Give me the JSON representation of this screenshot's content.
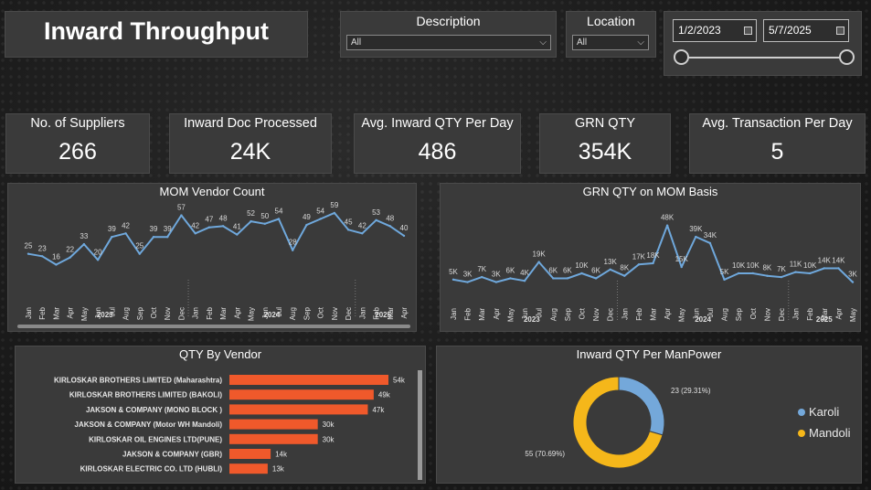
{
  "header": {
    "title": "Inward Throughput"
  },
  "filters": {
    "description": {
      "label": "Description",
      "value": "All"
    },
    "location": {
      "label": "Location",
      "value": "All"
    },
    "date_range": {
      "start": "1/2/2023",
      "end": "5/7/2025"
    }
  },
  "kpis": [
    {
      "label": "No. of Suppliers",
      "value": "266"
    },
    {
      "label": "Inward Doc Processed",
      "value": "24K"
    },
    {
      "label": "Avg. Inward QTY Per Day",
      "value": "486"
    },
    {
      "label": "GRN QTY",
      "value": "354K"
    },
    {
      "label": "Avg. Transaction Per Day",
      "value": "5"
    }
  ],
  "colors": {
    "line": "#6fa8dc",
    "bar": "#f0592b",
    "karoli": "#74a8da",
    "mandoli": "#f5b71a"
  },
  "chart_data": [
    {
      "type": "line",
      "title": "MOM Vendor Count",
      "x": [
        "Jan",
        "Feb",
        "Mar",
        "Apr",
        "May",
        "Jun",
        "Jul",
        "Aug",
        "Sep",
        "Oct",
        "Nov",
        "Dec",
        "Jan",
        "Feb",
        "Mar",
        "Apr",
        "May",
        "Jun",
        "Jul",
        "Aug",
        "Sep",
        "Oct",
        "Nov",
        "Dec",
        "Jan",
        "Feb",
        "Mar",
        "Apr"
      ],
      "year_labels": [
        {
          "label": "2023",
          "start": 0,
          "end": 11
        },
        {
          "label": "2024",
          "start": 12,
          "end": 23
        },
        {
          "label": "2025",
          "start": 24,
          "end": 27
        }
      ],
      "values": [
        25,
        23,
        16,
        22,
        33,
        20,
        39,
        42,
        25,
        39,
        39,
        57,
        42,
        47,
        48,
        41,
        52,
        50,
        54,
        28,
        49,
        54,
        59,
        45,
        42,
        53,
        48,
        40
      ],
      "data_labels": [
        "25",
        "23",
        "16",
        "22",
        "33",
        "20",
        "39",
        "42",
        "25",
        "39",
        "39",
        "57",
        "42",
        "47",
        "48",
        "41",
        "52",
        "50",
        "54",
        "28",
        "49",
        "54",
        "59",
        "45",
        "42",
        "53",
        "48",
        "40"
      ],
      "ylim": [
        5,
        65
      ]
    },
    {
      "type": "line",
      "title": "GRN QTY on MOM Basis",
      "x": [
        "Jan",
        "Feb",
        "Mar",
        "Apr",
        "May",
        "Jun",
        "Jul",
        "Aug",
        "Sep",
        "Oct",
        "Nov",
        "Dec",
        "Jan",
        "Feb",
        "Mar",
        "Apr",
        "May",
        "Jun",
        "Jul",
        "Aug",
        "Sep",
        "Oct",
        "Nov",
        "Dec",
        "Jan",
        "Feb",
        "Mar",
        "Apr",
        "May"
      ],
      "year_labels": [
        {
          "label": "2023",
          "start": 0,
          "end": 11
        },
        {
          "label": "2024",
          "start": 12,
          "end": 23
        },
        {
          "label": "2025",
          "start": 24,
          "end": 28
        }
      ],
      "values": [
        5,
        3,
        7,
        3,
        6,
        4,
        19,
        6,
        6,
        10,
        6,
        13,
        8,
        17,
        18,
        48,
        15,
        39,
        34,
        5,
        10,
        10,
        8,
        7,
        11,
        10,
        14,
        14,
        3
      ],
      "data_labels": [
        "5K",
        "3K",
        "7K",
        "3K",
        "6K",
        "4K",
        "19K",
        "6K",
        "6K",
        "10K",
        "6K",
        "13K",
        "8K",
        "17K",
        "18K",
        "48K",
        "15K",
        "39K",
        "34K",
        "5K",
        "10K",
        "10K",
        "8K",
        "7K",
        "11K",
        "10K",
        "14K",
        "14K",
        "3K"
      ],
      "ylim": [
        -6,
        55
      ]
    },
    {
      "type": "bar",
      "title": "QTY By Vendor",
      "categories": [
        "KIRLOSKAR BROTHERS LIMITED (Maharashtra)",
        "KIRLOSKAR BROTHERS LIMITED (BAKOLI)",
        "JAKSON & COMPANY (MONO BLOCK )",
        "JAKSON & COMPANY (Motor WH Mandoli)",
        "KIRLOSKAR OIL ENGINES LTD(PUNE)",
        "JAKSON & COMPANY (GBR)",
        "KIRLOSKAR ELECTRIC CO. LTD (HUBLI)"
      ],
      "values": [
        54,
        49,
        47,
        30,
        30,
        14,
        13
      ],
      "data_labels": [
        "54k",
        "49k",
        "47k",
        "30k",
        "30k",
        "14k",
        "13k"
      ],
      "xlim": [
        0,
        54
      ]
    },
    {
      "type": "pie",
      "title": "Inward QTY Per ManPower",
      "slices": [
        {
          "name": "Karoli",
          "value": 23,
          "label": "23 (29.31%)"
        },
        {
          "name": "Mandoli",
          "value": 55,
          "label": "55 (70.69%)"
        }
      ]
    }
  ]
}
